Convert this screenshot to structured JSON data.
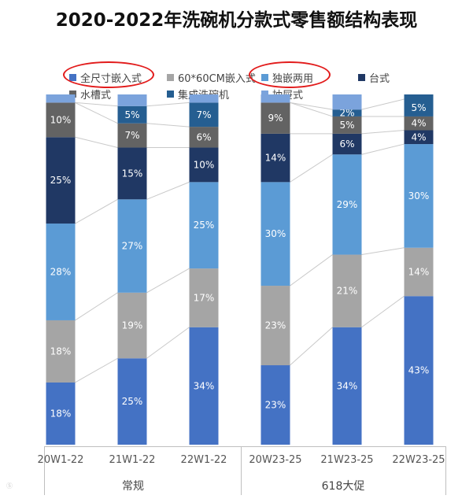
{
  "title": "2020-2022年洗碗机分款式零售额结构表现",
  "legend": [
    {
      "label": "全尺寸嵌入式",
      "color": "#4472c4"
    },
    {
      "label": "60*60CM嵌入式",
      "color": "#a5a5a5"
    },
    {
      "label": "独嵌两用",
      "color": "#5b9bd5"
    },
    {
      "label": "台式",
      "color": "#203864"
    },
    {
      "label": "水槽式",
      "color": "#636363"
    },
    {
      "label": "集成洗碗机",
      "color": "#255e91"
    },
    {
      "label": "抽屉式",
      "color": "#7ba3dc"
    }
  ],
  "groups": [
    {
      "label": "常规"
    },
    {
      "label": "618大促"
    }
  ],
  "chart_data": {
    "type": "bar",
    "stacked": true,
    "percent": true,
    "categories": [
      "20W1-22",
      "21W1-22",
      "22W1-22",
      "20W23-25",
      "21W23-25",
      "22W23-25"
    ],
    "category_groups": [
      {
        "label": "常规",
        "categories": [
          "20W1-22",
          "21W1-22",
          "22W1-22"
        ]
      },
      {
        "label": "618大促",
        "categories": [
          "20W23-25",
          "21W23-25",
          "22W23-25"
        ]
      }
    ],
    "series": [
      {
        "name": "全尺寸嵌入式",
        "color": "#4472c4",
        "values": [
          18,
          25,
          34,
          23,
          34,
          43
        ],
        "labels": [
          "18%",
          "25%",
          "34%",
          "23%",
          "34%",
          "43%"
        ]
      },
      {
        "name": "60*60CM嵌入式",
        "color": "#a5a5a5",
        "values": [
          18,
          19,
          17,
          23,
          21,
          14
        ],
        "labels": [
          "18%",
          "19%",
          "17%",
          "23%",
          "21%",
          "14%"
        ]
      },
      {
        "name": "独嵌两用",
        "color": "#5b9bd5",
        "values": [
          28,
          27,
          25,
          30,
          29,
          30
        ],
        "labels": [
          "28%",
          "27%",
          "25%",
          "30%",
          "29%",
          "30%"
        ]
      },
      {
        "name": "台式",
        "color": "#203864",
        "values": [
          25,
          15,
          10,
          14,
          6,
          4
        ],
        "labels": [
          "25%",
          "15%",
          "10%",
          "14%",
          "6%",
          "4%"
        ]
      },
      {
        "name": "水槽式",
        "color": "#636363",
        "values": [
          10,
          7,
          6,
          9,
          5,
          4
        ],
        "labels": [
          "10%",
          "7%",
          "6%",
          "9%",
          "5%",
          "4%"
        ]
      },
      {
        "name": "集成洗碗机",
        "color": "#255e91",
        "values": [
          0,
          5,
          7,
          0,
          2,
          5
        ],
        "labels": [
          "",
          "5%",
          "7%",
          "",
          "2%",
          "5%"
        ]
      },
      {
        "name": "抽屉式",
        "color": "#7ba3dc",
        "values": [
          1,
          2,
          1,
          1,
          3,
          0
        ],
        "labels": [
          "",
          "",
          "",
          "",
          "",
          ""
        ]
      }
    ],
    "ylim": [
      0,
      100
    ],
    "grid": false,
    "legend_position": "top",
    "highlighted_legend_entries": [
      "全尺寸嵌入式",
      "独嵌两用"
    ]
  }
}
